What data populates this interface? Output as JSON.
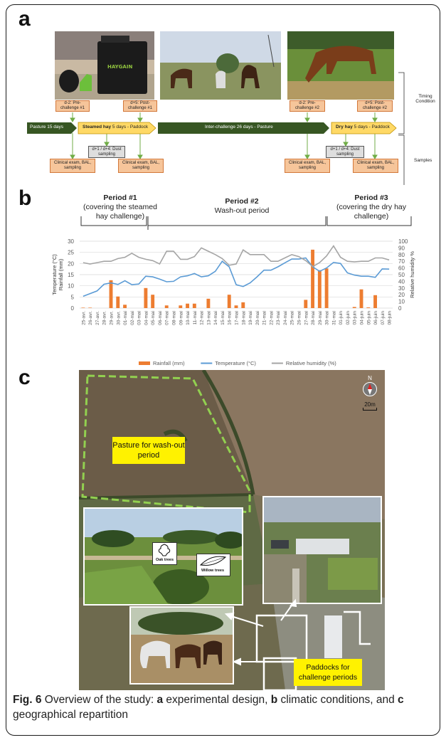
{
  "panel_a": {
    "letter": "a",
    "timeline": {
      "pasture_1": "Pasture 15 days",
      "steamed_hay_bold": "Steamed hay",
      "steamed_hay_rest": " 5 days - Paddock",
      "inter_challenge": "Inter-challenge 26 days - Pasture",
      "dry_hay_bold": "Dry hay",
      "dry_hay_rest": " 5 days - Paddock"
    },
    "boxes": {
      "pre1": "d-2: Pre-challenge #1",
      "post1": "d+5: Post-challenge #1",
      "pre2": "d-2: Pre-challenge #2",
      "post2": "d+5: Post-challenge #2",
      "clin1": "Clinical exam, BAL, sampling",
      "clin2": "Clinical exam, BAL, sampling",
      "clin3": "Clinical exam, BAL, sampling",
      "clin4": "Clinical exam, BAL, sampling",
      "dust1": "d+1 / d+4: Dust sampling",
      "dust2": "d+1 / d+4: Dust sampling"
    },
    "bracket_labels": {
      "timing": "Timing Condition",
      "samples": "Samples"
    },
    "haygain_logo": "HAYGAIN"
  },
  "panel_b": {
    "letter": "b",
    "periods": [
      {
        "title": "Period #1",
        "subtitle": "(covering the steamed hay challenge)"
      },
      {
        "title": "Period #2",
        "subtitle": "Wash-out period"
      },
      {
        "title": "Period #3",
        "subtitle": "(covering the dry hay challenge)"
      }
    ]
  },
  "chart_data": {
    "type": "bar",
    "categories": [
      "25-avr.",
      "26-avr.",
      "27-avr.",
      "28-avr.",
      "29-avr.",
      "30-avr.",
      "01-mai",
      "02-mai",
      "03-mai",
      "04-mai",
      "05-mai",
      "06-mai",
      "07-mai",
      "08-mai",
      "09-mai",
      "10-mai",
      "11-mai",
      "12-mai",
      "13-mai",
      "14-mai",
      "15-mai",
      "16-mai",
      "17-mai",
      "18-mai",
      "19-mai",
      "20-mai",
      "21-mai",
      "22-mai",
      "23-mai",
      "24-mai",
      "25-mai",
      "26-mai",
      "27-mai",
      "28-mai",
      "29-mai",
      "30-mai",
      "31-mai",
      "01-juin",
      "02-juin",
      "03-juin",
      "04-juin",
      "05-juin",
      "06-juin",
      "07-juin",
      "08-juin"
    ],
    "series": [
      {
        "name": "Rainfall (mm)",
        "kind": "bar",
        "axis": "left",
        "color": "#ed7d31",
        "values": [
          0.2,
          0.2,
          0,
          0,
          12.5,
          5.2,
          1.5,
          0,
          0,
          9,
          6,
          0,
          1.2,
          0,
          1.2,
          2,
          2,
          0,
          4.2,
          0,
          0,
          6,
          1.2,
          2.6,
          0,
          0,
          0,
          0,
          0,
          0,
          0,
          0,
          3.7,
          26.2,
          17,
          17.8,
          0,
          0,
          0,
          0.5,
          8.4,
          0.3,
          5.8,
          0,
          0
        ]
      },
      {
        "name": "Temperature (°C)",
        "kind": "line",
        "axis": "left",
        "color": "#5b9bd5",
        "values": [
          5.3,
          6.5,
          7.7,
          10.7,
          11.3,
          10.6,
          12.3,
          10.5,
          10.8,
          14.3,
          14,
          13,
          11.8,
          12,
          14,
          14.5,
          15.5,
          14,
          14.5,
          16.5,
          21,
          18.5,
          10.5,
          9.7,
          11.3,
          14,
          17,
          17,
          18.5,
          20.3,
          22,
          22,
          22.5,
          18.5,
          16.5,
          18,
          20.5,
          20,
          15.8,
          14.8,
          14.3,
          14.3,
          13.8,
          17.6,
          17.5
        ]
      },
      {
        "name": "Relative humidity (%)",
        "kind": "line",
        "axis": "right",
        "color": "#a5a5a5",
        "values": [
          68,
          66,
          68,
          70,
          70,
          74,
          76,
          82,
          76,
          73,
          71,
          66,
          85,
          85,
          73,
          73,
          77,
          90,
          85,
          80,
          74,
          64,
          66,
          87,
          80,
          80,
          80,
          70,
          70,
          75,
          80,
          77,
          71,
          62,
          68,
          78,
          93,
          76,
          70,
          69,
          70,
          70,
          75,
          75,
          72
        ]
      }
    ],
    "left_axis": {
      "label_lines": [
        "Temperature (°C)",
        "Rainfall (mm)"
      ],
      "ylim": [
        0,
        30
      ],
      "ticks": [
        "0",
        "5",
        "10",
        "15",
        "20",
        "25",
        "30"
      ]
    },
    "right_axis": {
      "label": "Relative humidity %",
      "ylim": [
        0,
        100
      ],
      "ticks": [
        "0",
        "10",
        "20",
        "30",
        "40",
        "50",
        "60",
        "70",
        "80",
        "90",
        "100"
      ]
    },
    "legend_position": "bottom"
  },
  "panel_c": {
    "letter": "c",
    "pasture_label": "Pasture for wash-out period",
    "paddock_label": "Paddocks for challenge periods",
    "oak_label": "Oak trees",
    "willow_label": "Willow trees",
    "compass": "N",
    "scale": "20m"
  },
  "caption": {
    "fig": "Fig. 6",
    "text1": " Overview of the study: ",
    "a": "a",
    "text2": " experimental design, ",
    "b": "b",
    "text3": " climatic conditions, and ",
    "c": "c",
    "text4": " geographical repartition"
  },
  "colors": {
    "green_arrow": "#375623",
    "yellow_arrow": "#ffd966",
    "pasture_border": "#92d050",
    "highlight": "#fff200"
  }
}
